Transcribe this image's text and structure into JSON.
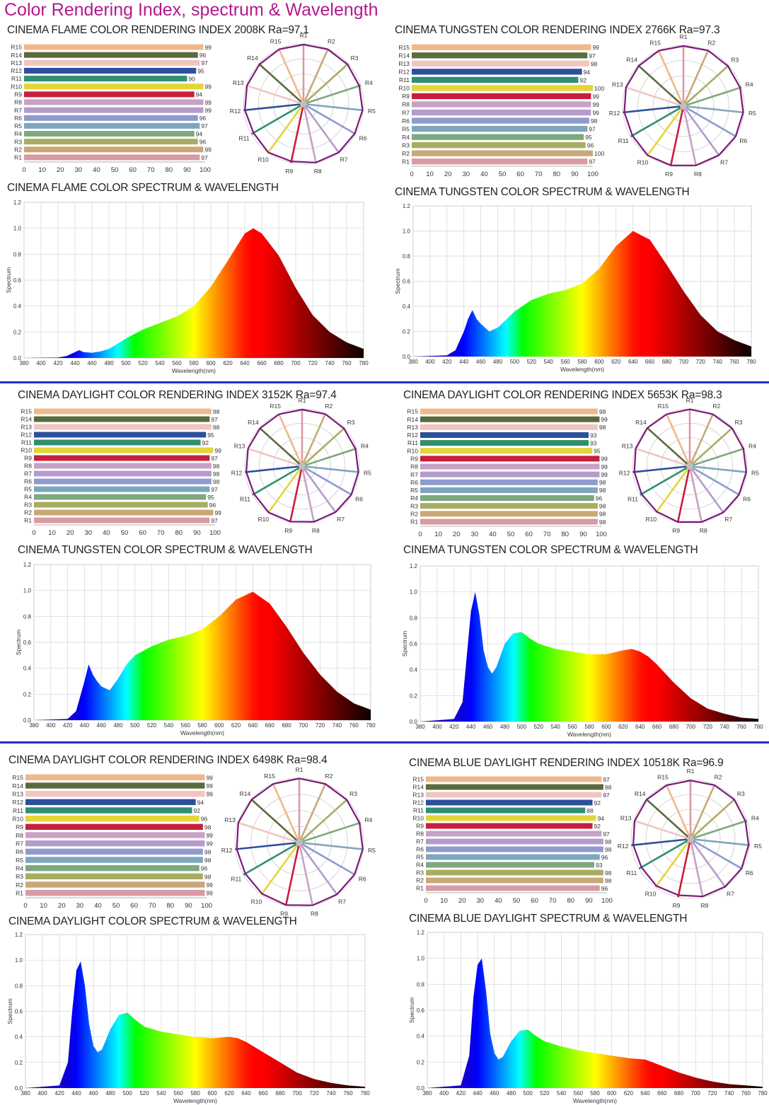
{
  "page_title": "Color Rendering Index, spectrum & Wavelength",
  "cri_labels": [
    "R1",
    "R2",
    "R3",
    "R4",
    "R5",
    "R6",
    "R7",
    "R8",
    "R9",
    "R10",
    "R11",
    "R12",
    "R13",
    "R14",
    "R15"
  ],
  "cri_colors": [
    "#d99aa3",
    "#c9a877",
    "#a7ad62",
    "#7ea87e",
    "#7fa6bc",
    "#8e9bcc",
    "#b59bcc",
    "#c7a2c4",
    "#c81e3c",
    "#e5d43a",
    "#2f8f6f",
    "#2d4f9c",
    "#f1c5c0",
    "#5a6b3e",
    "#f0b889"
  ],
  "cri_axis_ticks": [
    "0",
    "10",
    "20",
    "30",
    "40",
    "50",
    "60",
    "70",
    "80",
    "90",
    "100"
  ],
  "spectrum_x_ticks": [
    "380",
    "400",
    "420",
    "440",
    "460",
    "480",
    "500",
    "520",
    "540",
    "560",
    "580",
    "600",
    "620",
    "640",
    "660",
    "680",
    "700",
    "720",
    "740",
    "760",
    "780"
  ],
  "spectrum_y_ticks": [
    "0.0",
    "0.2",
    "0.4",
    "0.6",
    "0.8",
    "1.0",
    "1.2"
  ],
  "spectrum_xlabel": "Wavelength(nm)",
  "spectrum_ylabel": "Spectrum",
  "panels": [
    {
      "cri_title": "CINEMA FLAME COLOR RENDERING INDEX 2008K  Ra=97.1",
      "spec_title": "CINEMA FLAME COLOR SPECTRUM & WAVELENGTH"
    },
    {
      "cri_title": "CINEMA TUNGSTEN COLOR RENDERING INDEX 2766K Ra=97.3",
      "spec_title": "CINEMA TUNGSTEN COLOR SPECTRUM & WAVELENGTH"
    },
    {
      "cri_title": "CINEMA DAYLIGHT COLOR RENDERING INDEX 3152K  Ra=97.4",
      "spec_title": "CINEMA TUNGSTEN COLOR SPECTRUM & WAVELENGTH"
    },
    {
      "cri_title": "CINEMA DAYLIGHT COLOR RENDERING INDEX 5653K  Ra=98.3",
      "spec_title": "CINEMA TUNGSTEN COLOR SPECTRUM & WAVELENGTH"
    },
    {
      "cri_title": "CINEMA DAYLIGHT COLOR RENDERING INDEX 6498K  Ra=98.4",
      "spec_title": "CINEMA DAYLIGHT COLOR SPECTRUM & WAVELENGTH"
    },
    {
      "cri_title": "CINEMA BLUE DAYLIGHT RENDERING INDEX 10518K  Ra=96.9",
      "spec_title": "CINEMA BLUE DAYLIGHT SPECTRUM & WAVELENGTH"
    }
  ],
  "chart_data": [
    {
      "type": "bar",
      "orientation": "horizontal",
      "categories": [
        "R1",
        "R2",
        "R3",
        "R4",
        "R5",
        "R6",
        "R7",
        "R8",
        "R9",
        "R10",
        "R11",
        "R12",
        "R13",
        "R14",
        "R15"
      ],
      "values": [
        97,
        99,
        96,
        94,
        97,
        96,
        99,
        99,
        94,
        99,
        90,
        95,
        97,
        96,
        99
      ],
      "xlim": [
        0,
        100
      ]
    },
    {
      "type": "line",
      "kind": "polar-cri",
      "categories": [
        "R1",
        "R2",
        "R3",
        "R4",
        "R5",
        "R6",
        "R7",
        "R8",
        "R9",
        "R10",
        "R11",
        "R12",
        "R13",
        "R14",
        "R15"
      ],
      "values": [
        97,
        99,
        96,
        94,
        97,
        96,
        99,
        99,
        94,
        99,
        90,
        95,
        97,
        96,
        99
      ]
    },
    {
      "type": "area",
      "xlabel": "Wavelength(nm)",
      "ylabel": "Spectrum",
      "xlim": [
        380,
        780
      ],
      "ylim": [
        0,
        1.2
      ],
      "x": [
        380,
        420,
        430,
        440,
        445,
        450,
        460,
        470,
        480,
        500,
        520,
        540,
        560,
        580,
        600,
        620,
        640,
        650,
        660,
        680,
        700,
        720,
        740,
        760,
        780
      ],
      "y": [
        0.0,
        0.003,
        0.015,
        0.045,
        0.06,
        0.045,
        0.04,
        0.05,
        0.07,
        0.15,
        0.22,
        0.27,
        0.32,
        0.4,
        0.55,
        0.75,
        0.96,
        1.0,
        0.96,
        0.79,
        0.54,
        0.33,
        0.2,
        0.12,
        0.07
      ]
    },
    {
      "type": "bar",
      "orientation": "horizontal",
      "categories": [
        "R1",
        "R2",
        "R3",
        "R4",
        "R5",
        "R6",
        "R7",
        "R8",
        "R9",
        "R10",
        "R11",
        "R12",
        "R13",
        "R14",
        "R15"
      ],
      "values": [
        97,
        100,
        96,
        95,
        97,
        98,
        99,
        99,
        99,
        100,
        92,
        94,
        98,
        97,
        99
      ],
      "xlim": [
        0,
        100
      ]
    },
    {
      "type": "line",
      "kind": "polar-cri",
      "categories": [
        "R1",
        "R2",
        "R3",
        "R4",
        "R5",
        "R6",
        "R7",
        "R8",
        "R9",
        "R10",
        "R11",
        "R12",
        "R13",
        "R14",
        "R15"
      ],
      "values": [
        97,
        100,
        96,
        95,
        97,
        98,
        99,
        99,
        99,
        100,
        92,
        94,
        98,
        97,
        99
      ]
    },
    {
      "type": "area",
      "xlabel": "Wavelength(nm)",
      "ylabel": "Spectrum",
      "xlim": [
        380,
        780
      ],
      "ylim": [
        0,
        1.2
      ],
      "x": [
        380,
        420,
        430,
        440,
        445,
        450,
        455,
        460,
        470,
        480,
        500,
        520,
        540,
        560,
        580,
        600,
        620,
        640,
        660,
        680,
        700,
        720,
        740,
        760,
        780
      ],
      "y": [
        0.0,
        0.01,
        0.05,
        0.2,
        0.3,
        0.37,
        0.3,
        0.26,
        0.2,
        0.23,
        0.36,
        0.45,
        0.5,
        0.53,
        0.58,
        0.7,
        0.88,
        1.0,
        0.93,
        0.73,
        0.52,
        0.33,
        0.2,
        0.13,
        0.08
      ]
    },
    {
      "type": "bar",
      "orientation": "horizontal",
      "categories": [
        "R1",
        "R2",
        "R3",
        "R4",
        "R5",
        "R6",
        "R7",
        "R8",
        "R9",
        "R10",
        "R11",
        "R12",
        "R13",
        "R14",
        "R15"
      ],
      "values": [
        97,
        99,
        96,
        95,
        97,
        98,
        98,
        98,
        97,
        99,
        92,
        95,
        98,
        97,
        98
      ],
      "xlim": [
        0,
        100
      ]
    },
    {
      "type": "line",
      "kind": "polar-cri",
      "categories": [
        "R1",
        "R2",
        "R3",
        "R4",
        "R5",
        "R6",
        "R7",
        "R8",
        "R9",
        "R10",
        "R11",
        "R12",
        "R13",
        "R14",
        "R15"
      ],
      "values": [
        97,
        99,
        96,
        95,
        97,
        98,
        98,
        98,
        97,
        99,
        92,
        95,
        98,
        97,
        98
      ]
    },
    {
      "type": "area",
      "xlabel": "Wavelength(nm)",
      "ylabel": "Spectrum",
      "xlim": [
        380,
        780
      ],
      "ylim": [
        0,
        1.2
      ],
      "x": [
        380,
        420,
        430,
        440,
        445,
        450,
        455,
        460,
        470,
        480,
        490,
        500,
        520,
        540,
        560,
        580,
        600,
        620,
        640,
        660,
        680,
        700,
        720,
        740,
        760,
        780
      ],
      "y": [
        0.0,
        0.01,
        0.07,
        0.3,
        0.43,
        0.35,
        0.3,
        0.26,
        0.23,
        0.32,
        0.43,
        0.5,
        0.57,
        0.62,
        0.65,
        0.7,
        0.8,
        0.93,
        0.99,
        0.9,
        0.72,
        0.52,
        0.35,
        0.22,
        0.13,
        0.08
      ]
    },
    {
      "type": "bar",
      "orientation": "horizontal",
      "categories": [
        "R1",
        "R2",
        "R3",
        "R4",
        "R5",
        "R6",
        "R7",
        "R8",
        "R9",
        "R10",
        "R11",
        "R12",
        "R13",
        "R14",
        "R15"
      ],
      "values": [
        98,
        98,
        98,
        96,
        98,
        98,
        99,
        99,
        99,
        95,
        93,
        93,
        98,
        99,
        98
      ],
      "xlim": [
        0,
        100
      ]
    },
    {
      "type": "line",
      "kind": "polar-cri",
      "categories": [
        "R1",
        "R2",
        "R3",
        "R4",
        "R5",
        "R6",
        "R7",
        "R8",
        "R9",
        "R10",
        "R11",
        "R12",
        "R13",
        "R14",
        "R15"
      ],
      "values": [
        98,
        98,
        98,
        96,
        98,
        98,
        99,
        99,
        99,
        95,
        93,
        93,
        98,
        99,
        98
      ]
    },
    {
      "type": "area",
      "xlabel": "Wavelength(nm)",
      "ylabel": "Spectrum",
      "xlim": [
        380,
        780
      ],
      "ylim": [
        0,
        1.2
      ],
      "x": [
        380,
        420,
        430,
        435,
        440,
        445,
        450,
        455,
        460,
        465,
        470,
        480,
        490,
        500,
        510,
        520,
        540,
        560,
        580,
        600,
        620,
        630,
        640,
        650,
        660,
        680,
        700,
        720,
        740,
        760,
        780
      ],
      "y": [
        0.0,
        0.02,
        0.15,
        0.5,
        0.85,
        1.0,
        0.82,
        0.55,
        0.42,
        0.37,
        0.42,
        0.6,
        0.68,
        0.69,
        0.64,
        0.6,
        0.56,
        0.54,
        0.52,
        0.52,
        0.55,
        0.56,
        0.54,
        0.5,
        0.44,
        0.3,
        0.18,
        0.1,
        0.06,
        0.03,
        0.02
      ]
    },
    {
      "type": "bar",
      "orientation": "horizontal",
      "categories": [
        "R1",
        "R2",
        "R3",
        "R4",
        "R5",
        "R6",
        "R7",
        "R8",
        "R9",
        "R10",
        "R11",
        "R12",
        "R13",
        "R14",
        "R15"
      ],
      "values": [
        99,
        99,
        98,
        96,
        98,
        98,
        99,
        99,
        98,
        96,
        92,
        94,
        99,
        99,
        99
      ],
      "xlim": [
        0,
        100
      ]
    },
    {
      "type": "line",
      "kind": "polar-cri",
      "categories": [
        "R1",
        "R2",
        "R3",
        "R4",
        "R5",
        "R6",
        "R7",
        "R8",
        "R9",
        "R10",
        "R11",
        "R12",
        "R13",
        "R14",
        "R15"
      ],
      "values": [
        99,
        99,
        98,
        96,
        98,
        98,
        99,
        99,
        98,
        96,
        92,
        94,
        99,
        99,
        99
      ]
    },
    {
      "type": "area",
      "xlabel": "Wavelength(nm)",
      "ylabel": "Spectrum",
      "xlim": [
        380,
        780
      ],
      "ylim": [
        0,
        1.2
      ],
      "x": [
        380,
        420,
        430,
        435,
        440,
        445,
        450,
        455,
        460,
        465,
        470,
        480,
        490,
        500,
        510,
        520,
        540,
        560,
        580,
        600,
        620,
        630,
        640,
        660,
        680,
        700,
        720,
        740,
        760,
        780
      ],
      "y": [
        0.0,
        0.02,
        0.2,
        0.6,
        0.92,
        0.99,
        0.8,
        0.5,
        0.33,
        0.28,
        0.3,
        0.46,
        0.57,
        0.59,
        0.53,
        0.48,
        0.44,
        0.42,
        0.4,
        0.39,
        0.4,
        0.39,
        0.36,
        0.28,
        0.2,
        0.12,
        0.07,
        0.04,
        0.02,
        0.01
      ]
    },
    {
      "type": "bar",
      "orientation": "horizontal",
      "categories": [
        "R1",
        "R2",
        "R3",
        "R4",
        "R5",
        "R6",
        "R7",
        "R8",
        "R9",
        "R10",
        "R11",
        "R12",
        "R13",
        "R14",
        "R15"
      ],
      "values": [
        96,
        98,
        98,
        93,
        96,
        98,
        98,
        97,
        92,
        94,
        88,
        92,
        97,
        98,
        97
      ],
      "xlim": [
        0,
        100
      ]
    },
    {
      "type": "line",
      "kind": "polar-cri",
      "categories": [
        "R1",
        "R2",
        "R3",
        "R4",
        "R5",
        "R6",
        "R7",
        "R8",
        "R9",
        "R10",
        "R11",
        "R12",
        "R13",
        "R14",
        "R15"
      ],
      "values": [
        96,
        98,
        98,
        93,
        96,
        98,
        98,
        97,
        92,
        94,
        88,
        92,
        97,
        98,
        97
      ]
    },
    {
      "type": "area",
      "xlabel": "Wavelength(nm)",
      "ylabel": "Spectrum",
      "xlim": [
        380,
        780
      ],
      "ylim": [
        0,
        1.2
      ],
      "x": [
        380,
        420,
        430,
        435,
        440,
        445,
        450,
        455,
        460,
        465,
        470,
        480,
        490,
        500,
        510,
        520,
        540,
        560,
        580,
        600,
        620,
        640,
        660,
        680,
        700,
        720,
        740,
        760,
        780
      ],
      "y": [
        0.0,
        0.02,
        0.25,
        0.7,
        0.95,
        1.0,
        0.75,
        0.42,
        0.27,
        0.22,
        0.24,
        0.36,
        0.44,
        0.45,
        0.4,
        0.36,
        0.32,
        0.29,
        0.27,
        0.25,
        0.23,
        0.22,
        0.17,
        0.12,
        0.08,
        0.05,
        0.03,
        0.02,
        0.01
      ]
    }
  ]
}
